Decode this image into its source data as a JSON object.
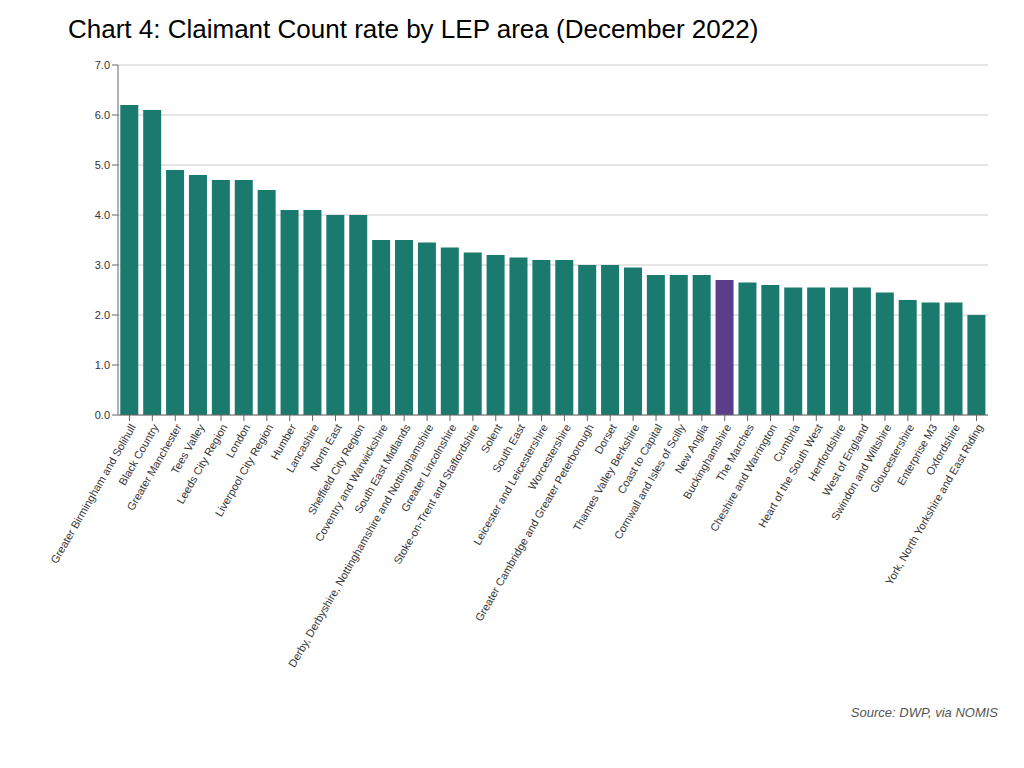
{
  "chart_data": {
    "type": "bar",
    "title": "Chart 4: Claimant Count rate by LEP area (December 2022)",
    "annotations": [
      "Source: DWP, via NOMIS"
    ],
    "categories": [
      "Greater Birmingham and Solihull",
      "Black Country",
      "Greater Manchester",
      "Tees Valley",
      "Leeds City Region",
      "London",
      "Liverpool City Region",
      "Humber",
      "Lancashire",
      "North East",
      "Sheffield City Region",
      "Coventry and Warwickshire",
      "South East Midlands",
      "Derby, Derbyshire, Nottinghamshire and Nottinghamshire",
      "Greater Lincolnshire",
      "Stoke-on-Trent and Staffordshire",
      "Solent",
      "South East",
      "Leicester and Leicestershire",
      "Worcestershire",
      "Greater Cambridge and Greater Peterborough",
      "Dorset",
      "Thames Valley Berkshire",
      "Coast to Capital",
      "Cornwall and Isles of Scilly",
      "New Anglia",
      "Buckinghamshire",
      "The Marches",
      "Cheshire and Warrington",
      "Cumbria",
      "Heart of the South West",
      "Hertfordshire",
      "West of England",
      "Swindon and Wiltshire",
      "Gloucestershire",
      "Enterprise M3",
      "Oxfordshire",
      "York, North Yorkshire and East Riding"
    ],
    "values": [
      6.2,
      6.1,
      4.9,
      4.8,
      4.7,
      4.7,
      4.5,
      4.1,
      4.1,
      4.0,
      4.0,
      3.5,
      3.5,
      3.45,
      3.35,
      3.25,
      3.2,
      3.15,
      3.1,
      3.1,
      3.0,
      3.0,
      2.95,
      2.8,
      2.8,
      2.8,
      2.7,
      2.65,
      2.6,
      2.55,
      2.55,
      2.55,
      2.55,
      2.45,
      2.3,
      2.25,
      2.25,
      2.0
    ],
    "colors": [
      "#1a7a6e",
      "#1a7a6e",
      "#1a7a6e",
      "#1a7a6e",
      "#1a7a6e",
      "#1a7a6e",
      "#1a7a6e",
      "#1a7a6e",
      "#1a7a6e",
      "#1a7a6e",
      "#1a7a6e",
      "#1a7a6e",
      "#1a7a6e",
      "#1a7a6e",
      "#1a7a6e",
      "#1a7a6e",
      "#1a7a6e",
      "#1a7a6e",
      "#1a7a6e",
      "#1a7a6e",
      "#1a7a6e",
      "#1a7a6e",
      "#1a7a6e",
      "#1a7a6e",
      "#1a7a6e",
      "#1a7a6e",
      "#5b3d8a",
      "#1a7a6e",
      "#1a7a6e",
      "#1a7a6e",
      "#1a7a6e",
      "#1a7a6e",
      "#1a7a6e",
      "#1a7a6e",
      "#1a7a6e",
      "#1a7a6e",
      "#1a7a6e",
      "#1a7a6e"
    ],
    "ylim": [
      0,
      7.0
    ],
    "yticks": [
      {
        "value": 0,
        "label": "0.0"
      },
      {
        "value": 1,
        "label": "1.0"
      },
      {
        "value": 2,
        "label": "2.0"
      },
      {
        "value": 3,
        "label": "3.0"
      },
      {
        "value": 4,
        "label": "4.0"
      },
      {
        "value": 5,
        "label": "5.0"
      },
      {
        "value": 6,
        "label": "6.0"
      },
      {
        "value": 7,
        "label": "7.0"
      }
    ],
    "grid": true
  }
}
